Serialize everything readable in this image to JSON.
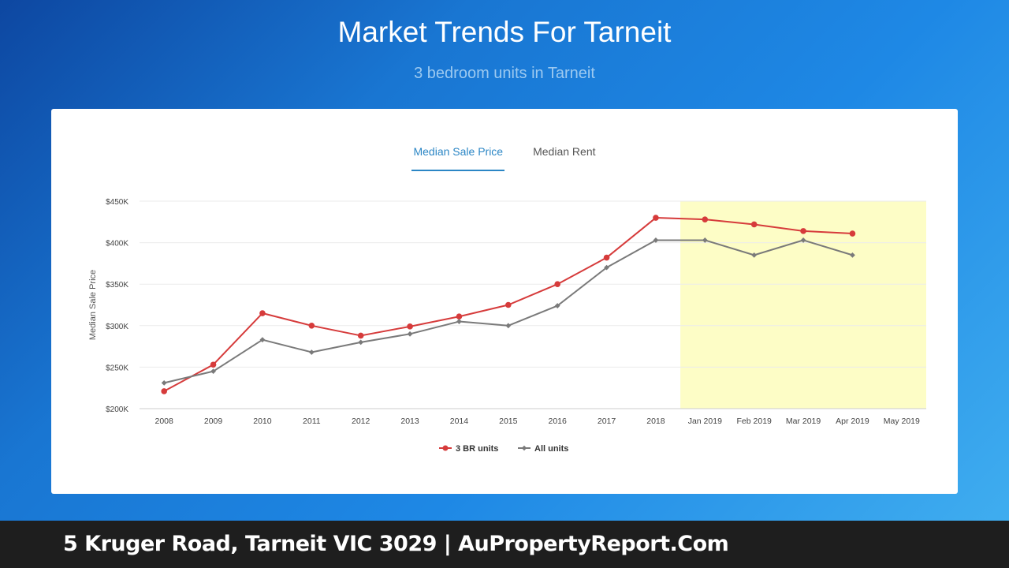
{
  "header": {
    "title": "Market Trends For Tarneit",
    "subtitle": "3 bedroom units in Tarneit"
  },
  "tabs": [
    {
      "label": "Median Sale Price",
      "active": true
    },
    {
      "label": "Median Rent",
      "active": false
    }
  ],
  "footer": {
    "text": "5 Kruger Road, Tarneit VIC 3029 | AuPropertyReport.Com"
  },
  "colors": {
    "series_3br": "#d63b3b",
    "series_all": "#7a7a7a",
    "highlight": "#fdfdc6",
    "tab_active": "#2b86c5"
  },
  "chart_data": {
    "type": "line",
    "title": "",
    "xlabel": "",
    "ylabel": "Median Sale Price",
    "categories": [
      "2008",
      "2009",
      "2010",
      "2011",
      "2012",
      "2013",
      "2014",
      "2015",
      "2016",
      "2017",
      "2018",
      "Jan 2019",
      "Feb 2019",
      "Mar 2019",
      "Apr 2019",
      "May 2019"
    ],
    "ylim": [
      200000,
      450000
    ],
    "yticks": [
      200000,
      250000,
      300000,
      350000,
      400000,
      450000
    ],
    "ytick_labels": [
      "$200K",
      "$250K",
      "$300K",
      "$350K",
      "$400K",
      "$450K"
    ],
    "grid": true,
    "highlight_range": [
      "Jan 2019",
      "May 2019"
    ],
    "legend_position": "bottom",
    "series": [
      {
        "name": "3 BR units",
        "marker": "circle",
        "values": [
          221000,
          253000,
          315000,
          300000,
          288000,
          299000,
          311000,
          325000,
          350000,
          382000,
          430000,
          428000,
          422000,
          414000,
          411000,
          null
        ]
      },
      {
        "name": "All units",
        "marker": "diamond",
        "values": [
          231000,
          245000,
          283000,
          268000,
          280000,
          290000,
          305000,
          300000,
          324000,
          370000,
          403000,
          403000,
          385000,
          403000,
          385000,
          null
        ]
      }
    ]
  }
}
